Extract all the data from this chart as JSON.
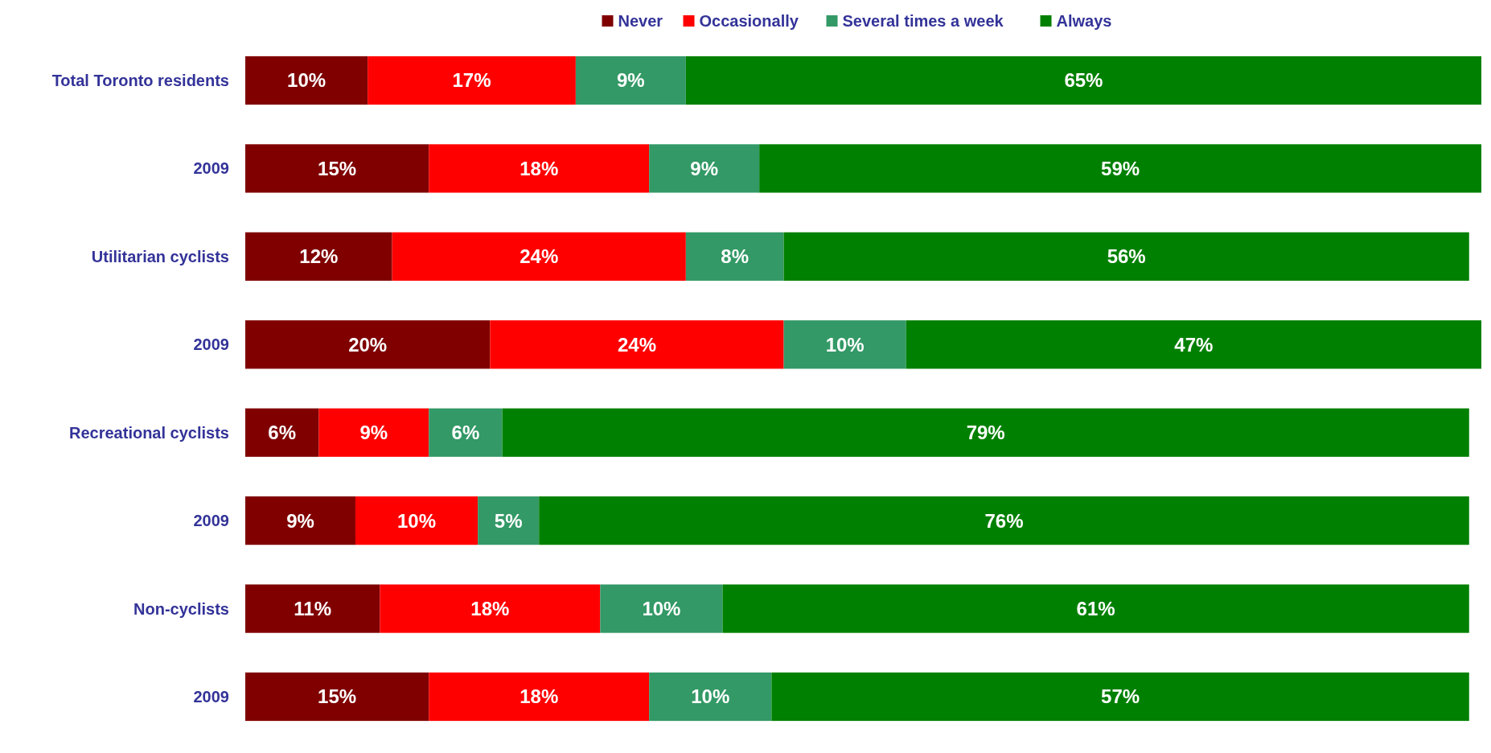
{
  "chart_data": {
    "type": "bar",
    "orientation": "horizontal",
    "stacked": true,
    "legend": "top",
    "tick_labels": "y",
    "xlim": [
      0,
      101
    ],
    "categories": [
      "Total Toronto residents",
      "2009",
      "Utilitarian cyclists",
      "2009",
      "Recreational cyclists",
      "2009",
      "Non-cyclists",
      "2009"
    ],
    "series": [
      {
        "name": "Never",
        "color": "#800000",
        "values": [
          10,
          15,
          12,
          20,
          6,
          9,
          11,
          15
        ],
        "value_labels": [
          "10%",
          "15%",
          "12%",
          "20%",
          "6%",
          "9%",
          "11%",
          "15%"
        ]
      },
      {
        "name": "Occasionally",
        "color": "#ff0000",
        "values": [
          17,
          18,
          24,
          24,
          9,
          10,
          18,
          18
        ],
        "value_labels": [
          "17%",
          "18%",
          "24%",
          "24%",
          "9%",
          "10%",
          "18%",
          "18%"
        ]
      },
      {
        "name": "Several times a week",
        "color": "#339966",
        "values": [
          9,
          9,
          8,
          10,
          6,
          5,
          10,
          10
        ],
        "value_labels": [
          "9%",
          "9%",
          "8%",
          "10%",
          "6%",
          "5%",
          "10%",
          "10%"
        ]
      },
      {
        "name": "Always",
        "color": "#008000",
        "values": [
          65,
          59,
          56,
          47,
          79,
          76,
          61,
          57
        ],
        "value_labels": [
          "65%",
          "59%",
          "56%",
          "47%",
          "79%",
          "76%",
          "61%",
          "57%"
        ]
      }
    ]
  }
}
